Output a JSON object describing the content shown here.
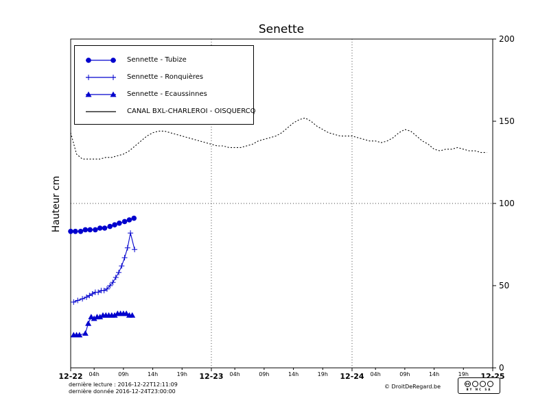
{
  "chart_data": {
    "type": "line",
    "title": "Senette",
    "ylabel": "Hauteur cm",
    "xlabel": "",
    "ylim": [
      0,
      200
    ],
    "x_range_hours": [
      0,
      72
    ],
    "y_ticks": [
      0,
      50,
      100,
      150,
      200
    ],
    "x_major_ticks": [
      {
        "hour": 0,
        "label": "12-22"
      },
      {
        "hour": 24,
        "label": "12-23"
      },
      {
        "hour": 48,
        "label": "12-24"
      },
      {
        "hour": 72,
        "label": "12-25"
      }
    ],
    "x_minor_ticks": [
      {
        "hour": 4,
        "label": "04h"
      },
      {
        "hour": 9,
        "label": "09h"
      },
      {
        "hour": 14,
        "label": "14h"
      },
      {
        "hour": 19,
        "label": "19h"
      },
      {
        "hour": 28,
        "label": "04h"
      },
      {
        "hour": 33,
        "label": "09h"
      },
      {
        "hour": 38,
        "label": "14h"
      },
      {
        "hour": 43,
        "label": "19h"
      },
      {
        "hour": 52,
        "label": "04h"
      },
      {
        "hour": 57,
        "label": "09h"
      },
      {
        "hour": 62,
        "label": "14h"
      },
      {
        "hour": 67,
        "label": "19h"
      }
    ],
    "grid": {
      "horizontal_values": [
        100
      ],
      "vertical_hours": [
        24,
        48
      ]
    },
    "legend_position": "upper left",
    "series": [
      {
        "id": "tubize",
        "name": "Sennette - Tubize",
        "color": "#0000cd",
        "marker": "circle",
        "line_style": "solid",
        "x_hours": [
          0,
          0.8,
          1.7,
          2.5,
          3.3,
          4.2,
          5,
          5.8,
          6.7,
          7.5,
          8.3,
          9.2,
          10,
          10.8
        ],
        "values": [
          83,
          83,
          83,
          84,
          84,
          84,
          85,
          85,
          86,
          87,
          88,
          89,
          90,
          91
        ]
      },
      {
        "id": "ronquieres",
        "name": "Sennette - Ronquières",
        "color": "#0000cd",
        "marker": "plus",
        "line_style": "solid",
        "x_hours": [
          0.5,
          1.2,
          2,
          2.7,
          3.2,
          3.7,
          4.2,
          4.7,
          5.2,
          5.7,
          6.2,
          6.7,
          7.2,
          7.7,
          8.2,
          8.7,
          9.2,
          9.7,
          10.2,
          10.9
        ],
        "values": [
          40,
          41,
          42,
          43,
          44,
          45,
          46,
          46,
          47,
          47,
          48,
          50,
          52,
          55,
          58,
          62,
          67,
          73,
          82,
          72
        ]
      },
      {
        "id": "ecaussinnes",
        "name": "Sennette - Ecaussinnes",
        "color": "#0000cd",
        "marker": "triangle",
        "line_style": "solid",
        "x_hours": [
          0.5,
          1,
          1.5,
          2.5,
          3,
          3.5,
          4,
          4.5,
          5,
          5.5,
          6,
          6.5,
          7,
          7.5,
          8,
          8.5,
          9,
          9.5,
          10,
          10.5
        ],
        "values": [
          20,
          20,
          20,
          21,
          27,
          31,
          30,
          31,
          31,
          32,
          32,
          32,
          32,
          32,
          33,
          33,
          33,
          33,
          32,
          32
        ]
      },
      {
        "id": "canal",
        "name": "CANAL BXL-CHARLEROI - OISQUERCQ",
        "color": "#000000",
        "marker": "none",
        "line_style": "dotted",
        "x_hours": [
          0,
          1,
          2,
          3,
          4,
          5,
          6,
          7,
          8,
          9,
          10,
          11,
          12,
          13,
          14,
          15,
          16,
          17,
          18,
          19,
          20,
          21,
          22,
          23,
          24,
          25,
          26,
          27,
          28,
          29,
          30,
          31,
          32,
          33,
          34,
          35,
          36,
          37,
          38,
          39,
          40,
          41,
          42,
          43,
          44,
          45,
          46,
          47,
          48,
          49,
          50,
          51,
          52,
          53,
          54,
          55,
          56,
          57,
          58,
          59,
          60,
          61,
          62,
          63,
          64,
          65,
          66,
          67,
          68,
          69,
          70,
          71
        ],
        "values": [
          143,
          130,
          127,
          127,
          127,
          127,
          128,
          128,
          129,
          130,
          132,
          135,
          138,
          141,
          143,
          144,
          144,
          143,
          142,
          141,
          140,
          139,
          138,
          137,
          136,
          135,
          135,
          134,
          134,
          134,
          135,
          136,
          138,
          139,
          140,
          141,
          143,
          146,
          149,
          151,
          152,
          150,
          147,
          145,
          143,
          142,
          141,
          141,
          141,
          140,
          139,
          138,
          138,
          137,
          138,
          140,
          143,
          145,
          144,
          141,
          138,
          136,
          133,
          132,
          133,
          133,
          134,
          133,
          132,
          132,
          131,
          131
        ]
      }
    ]
  },
  "footer": {
    "derniere_lecture": "dernière lecture : 2016-12-22T12:11:09",
    "derniere_donnee": "dernière donnée  2016-12-24T23:00:00",
    "copyright": "© DroitDeRegard.be",
    "license": {
      "logo": "cc",
      "labels": "BY NC SA"
    }
  }
}
